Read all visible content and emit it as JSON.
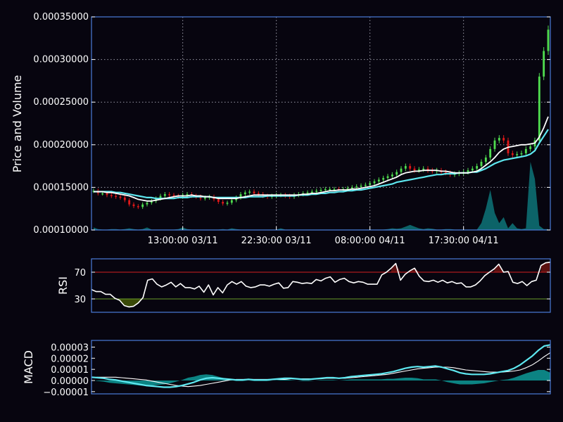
{
  "chart_data": [
    {
      "type": "candlestick",
      "ylabel": "Price and Volume",
      "ylim": [
        0.0001,
        0.00035
      ],
      "y_ticks": [
        "0.00010000",
        "0.00015000",
        "0.00020000",
        "0.00025000",
        "0.00030000",
        "0.00035000"
      ],
      "y_tick_values": [
        0.0001,
        0.00015,
        0.0002,
        0.00025,
        0.0003,
        0.00035
      ],
      "x_ticks": [
        "13:00:00 03/11",
        "22:30:00 03/11",
        "08:00:00 04/11",
        "17:30:00 04/11"
      ],
      "x_tick_index": [
        20,
        41,
        62,
        83
      ],
      "grid": true,
      "colors": {
        "up": "#4fdc4f",
        "down": "#e01818",
        "ma_short": "#ffffff",
        "ma_long": "#5ee8f0",
        "volume": "#0d6e72"
      },
      "close": [
        0.000146,
        0.000143,
        0.000143,
        0.000141,
        0.00014,
        0.000139,
        0.000138,
        0.000135,
        0.00013,
        0.000128,
        0.000127,
        0.00013,
        0.000132,
        0.000134,
        0.000137,
        0.00014,
        0.000142,
        0.000141,
        0.00014,
        0.000139,
        0.000141,
        0.000142,
        0.00014,
        0.000139,
        0.000137,
        0.000138,
        0.000139,
        0.000136,
        0.000133,
        0.000131,
        0.000132,
        0.000135,
        0.000138,
        0.000142,
        0.000144,
        0.000145,
        0.000143,
        0.000142,
        0.00014,
        0.000139,
        0.00014,
        0.000141,
        0.000141,
        0.00014,
        0.000139,
        0.000141,
        0.000142,
        0.000143,
        0.000144,
        0.000145,
        0.000146,
        0.000147,
        0.000148,
        0.000148,
        0.000148,
        0.000147,
        0.000148,
        0.000149,
        0.00015,
        0.000151,
        0.000152,
        0.000153,
        0.000155,
        0.000157,
        0.000159,
        0.000161,
        0.000163,
        0.000165,
        0.000168,
        0.000172,
        0.000175,
        0.000172,
        0.00017,
        0.000171,
        0.000172,
        0.00017,
        0.000169,
        0.00017,
        0.000168,
        0.000167,
        0.000165,
        0.000166,
        0.000167,
        0.000168,
        0.00017,
        0.000172,
        0.000175,
        0.00018,
        0.000185,
        0.000195,
        0.000205,
        0.000208,
        0.000205,
        0.00019,
        0.000188,
        0.000189,
        0.00019,
        0.000195,
        0.000198,
        0.000205,
        0.00028,
        0.00031,
        0.000335
      ],
      "volume": [
        3e-06,
        1e-06,
        5e-07,
        5e-07,
        1e-06,
        1e-06,
        5e-07,
        1e-06,
        2e-06,
        1e-06,
        5e-07,
        1e-06,
        3e-06,
        5e-07,
        5e-07,
        5e-07,
        5e-07,
        5e-07,
        5e-07,
        1e-06,
        3e-06,
        1e-06,
        5e-07,
        5e-07,
        5e-07,
        5e-07,
        5e-07,
        5e-07,
        5e-07,
        1e-06,
        5e-07,
        2e-06,
        1e-06,
        5e-07,
        5e-07,
        5e-07,
        5e-07,
        5e-07,
        5e-07,
        5e-07,
        5e-07,
        5e-07,
        2e-06,
        5e-07,
        5e-07,
        5e-07,
        5e-07,
        5e-07,
        5e-07,
        5e-07,
        5e-07,
        5e-07,
        5e-07,
        5e-07,
        5e-07,
        5e-07,
        5e-07,
        5e-07,
        5e-07,
        5e-07,
        5e-07,
        5e-07,
        5e-07,
        5e-07,
        5e-07,
        5e-07,
        1e-06,
        2e-06,
        1.5e-06,
        2e-06,
        4e-06,
        6e-06,
        4e-06,
        2e-06,
        1e-06,
        2e-06,
        1.5e-06,
        5e-07,
        5e-07,
        1e-06,
        1e-06,
        5e-07,
        5e-07,
        5e-07,
        5e-07,
        5e-07,
        5e-07,
        8e-06,
        2.5e-05,
        4.7e-05,
        2e-05,
        8e-06,
        1.5e-05,
        2e-06,
        8e-06,
        2e-06,
        1e-06,
        2e-06,
        8e-05,
        6e-05,
        5e-06,
        1e-06,
        1e-06
      ],
      "ma_short": [
        0.000145,
        0.000145,
        0.000145,
        0.000144,
        0.000144,
        0.000143,
        0.000142,
        0.000141,
        0.00014,
        0.000138,
        0.000136,
        0.000135,
        0.000134,
        0.000134,
        0.000135,
        0.000136,
        0.000137,
        0.000138,
        0.000139,
        0.00014,
        0.00014,
        0.00014,
        0.000141,
        0.00014,
        0.00014,
        0.000139,
        0.000139,
        0.000138,
        0.000137,
        0.000137,
        0.000137,
        0.000137,
        0.000137,
        0.000138,
        0.000139,
        0.00014,
        0.000141,
        0.000141,
        0.000141,
        0.000141,
        0.000141,
        0.000141,
        0.000141,
        0.000141,
        0.000141,
        0.000141,
        0.000141,
        0.000142,
        0.000142,
        0.000143,
        0.000143,
        0.000144,
        0.000145,
        0.000146,
        0.000146,
        0.000147,
        0.000147,
        0.000147,
        0.000148,
        0.000148,
        0.000149,
        0.00015,
        0.000151,
        0.000152,
        0.000154,
        0.000156,
        0.000158,
        0.00016,
        0.000162,
        0.000165,
        0.000167,
        0.000168,
        0.000169,
        0.000169,
        0.00017,
        0.00017,
        0.00017,
        0.00017,
        0.000169,
        0.000169,
        0.000168,
        0.000167,
        0.000167,
        0.000167,
        0.000167,
        0.000168,
        0.000169,
        0.000172,
        0.000176,
        0.00018,
        0.000185,
        0.000191,
        0.000195,
        0.000197,
        0.000198,
        0.000199,
        0.0002,
        0.0002,
        0.000201,
        0.000202,
        0.000209,
        0.00022,
        0.000233
      ],
      "ma_long": [
        0.000145,
        0.000145,
        0.000145,
        0.000145,
        0.000145,
        0.000144,
        0.000144,
        0.000143,
        0.000142,
        0.000141,
        0.00014,
        0.000139,
        0.000138,
        0.000138,
        0.000137,
        0.000137,
        0.000137,
        0.000137,
        0.000137,
        0.000138,
        0.000138,
        0.000138,
        0.000139,
        0.000139,
        0.000139,
        0.000139,
        0.000139,
        0.000138,
        0.000138,
        0.000138,
        0.000138,
        0.000138,
        0.000138,
        0.000138,
        0.000138,
        0.000139,
        0.000139,
        0.000139,
        0.000139,
        0.00014,
        0.00014,
        0.00014,
        0.00014,
        0.00014,
        0.00014,
        0.00014,
        0.000141,
        0.000141,
        0.000141,
        0.000142,
        0.000142,
        0.000143,
        0.000143,
        0.000144,
        0.000144,
        0.000145,
        0.000145,
        0.000146,
        0.000146,
        0.000147,
        0.000147,
        0.000148,
        0.000149,
        0.00015,
        0.000151,
        0.000152,
        0.000153,
        0.000154,
        0.000156,
        0.000157,
        0.000158,
        0.000159,
        0.00016,
        0.000161,
        0.000162,
        0.000163,
        0.000164,
        0.000165,
        0.000165,
        0.000166,
        0.000166,
        0.000166,
        0.000167,
        0.000167,
        0.000167,
        0.000168,
        0.000168,
        0.00017,
        0.000172,
        0.000175,
        0.000178,
        0.00018,
        0.000182,
        0.000183,
        0.000184,
        0.000185,
        0.000186,
        0.000187,
        0.000189,
        0.000193,
        0.000202,
        0.00021,
        0.000218
      ]
    },
    {
      "type": "line",
      "ylabel": "RSI",
      "y_ticks": [
        "30",
        "70"
      ],
      "y_tick_values": [
        30,
        70
      ],
      "ylim": [
        10,
        90
      ],
      "overbought": 70,
      "oversold": 30,
      "colors": {
        "line": "#ffffff",
        "overbought": "#d02020",
        "oversold": "#6a9a2a",
        "over_fill": "#5a1010",
        "under_fill": "#3a4a08"
      },
      "values": [
        44,
        41,
        41,
        37,
        37,
        31,
        28,
        20,
        18,
        19,
        24,
        32,
        58,
        60,
        52,
        48,
        51,
        55,
        48,
        53,
        47,
        47,
        45,
        49,
        40,
        51,
        36,
        47,
        39,
        51,
        56,
        52,
        56,
        49,
        47,
        48,
        51,
        51,
        49,
        52,
        54,
        46,
        47,
        56,
        55,
        53,
        54,
        53,
        59,
        57,
        61,
        63,
        55,
        59,
        61,
        56,
        54,
        56,
        55,
        52,
        52,
        52,
        66,
        70,
        76,
        83,
        58,
        67,
        72,
        76,
        64,
        57,
        56,
        58,
        55,
        58,
        54,
        56,
        53,
        54,
        48,
        48,
        51,
        57,
        65,
        70,
        75,
        82,
        70,
        71,
        55,
        53,
        56,
        50,
        56,
        58,
        80,
        84,
        85
      ]
    },
    {
      "type": "line",
      "ylabel": "MACD",
      "y_ticks": [
        "−0.00001",
        "0.00000",
        "0.00001",
        "0.00002",
        "0.00003"
      ],
      "y_tick_values": [
        -1e-05,
        0,
        1e-05,
        2e-05,
        3e-05
      ],
      "ylim": [
        -1.2e-05,
        3.6e-05
      ],
      "colors": {
        "macd": "#5ee8f0",
        "signal": "#ffffff",
        "histogram": "#0d8a8a"
      },
      "macd": [
        3e-06,
        2.5e-06,
        2e-06,
        1e-06,
        5e-07,
        -5e-07,
        -1.5e-06,
        -2.5e-06,
        -3.5e-06,
        -4.5e-06,
        -5e-06,
        -5.5e-06,
        -6e-06,
        -6e-06,
        -5.5e-06,
        -4.5e-06,
        -3e-06,
        -1.5e-06,
        5e-07,
        2e-06,
        2.5e-06,
        2e-06,
        1.5e-06,
        1e-06,
        5e-07,
        5e-07,
        1e-06,
        5e-07,
        5e-07,
        5e-07,
        1e-06,
        1.5e-06,
        2e-06,
        2e-06,
        1.5e-06,
        1e-06,
        1e-06,
        1.5e-06,
        2e-06,
        2.5e-06,
        2.5e-06,
        2e-06,
        2.5e-06,
        3.5e-06,
        4e-06,
        4.5e-06,
        5e-06,
        5.5e-06,
        6e-06,
        7e-06,
        8e-06,
        9.5e-06,
        1.1e-05,
        1.2e-05,
        1.25e-05,
        1.2e-05,
        1.25e-05,
        1.3e-05,
        1.2e-05,
        1.05e-05,
        9e-06,
        7e-06,
        6e-06,
        5.5e-06,
        5.5e-06,
        5.5e-06,
        6e-06,
        7e-06,
        8e-06,
        9e-06,
        1.1e-05,
        1.4e-05,
        1.8e-05,
        2.2e-05,
        2.7e-05,
        3.1e-05,
        3.2e-05
      ],
      "signal": [
        2.5e-06,
        3e-06,
        3e-06,
        3e-06,
        3e-06,
        2.5e-06,
        2e-06,
        1.5e-06,
        1e-06,
        5e-07,
        -5e-07,
        -1.5e-06,
        -2.5e-06,
        -3.5e-06,
        -4.5e-06,
        -5e-06,
        -5.5e-06,
        -5e-06,
        -4.5e-06,
        -3.5e-06,
        -2.5e-06,
        -1.5e-06,
        -5e-07,
        5e-07,
        1e-06,
        1e-06,
        1e-06,
        1e-06,
        1e-06,
        1e-06,
        1e-06,
        1e-06,
        1e-06,
        1.5e-06,
        1.5e-06,
        1.5e-06,
        1.5e-06,
        1.5e-06,
        1.5e-06,
        2e-06,
        2e-06,
        2e-06,
        2e-06,
        2.5e-06,
        3e-06,
        3.5e-06,
        4e-06,
        4.5e-06,
        5e-06,
        5.5e-06,
        6.5e-06,
        7.5e-06,
        8.5e-06,
        9.5e-06,
        1.05e-05,
        1.1e-05,
        1.15e-05,
        1.2e-05,
        1.2e-05,
        1.2e-05,
        1.15e-05,
        1.05e-05,
        9.5e-06,
        9e-06,
        8.5e-06,
        8e-06,
        7.5e-06,
        7.5e-06,
        7.5e-06,
        8e-06,
        8.5e-06,
        9.5e-06,
        1.15e-05,
        1.4e-05,
        1.75e-05,
        2.15e-05,
        2.5e-05
      ]
    }
  ]
}
